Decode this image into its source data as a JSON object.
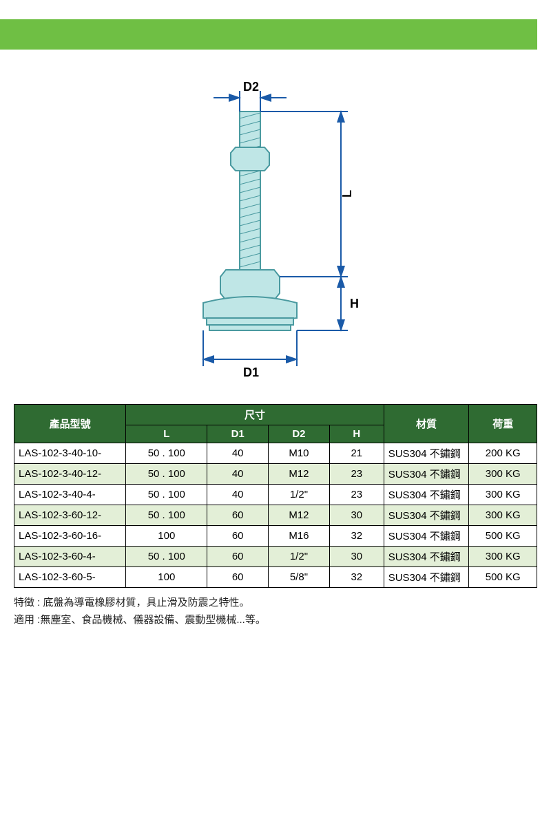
{
  "colors": {
    "top_bar": "#6fbf44",
    "header_bg": "#2f6b32",
    "row_alt_bg": "#e3efd7",
    "border": "#000000",
    "dim_line": "#1a5aa8",
    "part_fill": "#bfe6e6",
    "part_stroke": "#4a9aa0",
    "text": "#000000"
  },
  "diagram": {
    "labels": {
      "D1": "D1",
      "D2": "D2",
      "L": "L",
      "H": "H"
    },
    "label_fontsize": 16
  },
  "table": {
    "headers": {
      "product_no": "產品型號",
      "dimensions": "尺寸",
      "L": "L",
      "D1": "D1",
      "D2": "D2",
      "H": "H",
      "material": "材質",
      "load": "荷重"
    },
    "col_widths": {
      "product_no": 165,
      "L": 120,
      "D1": 90,
      "D2": 90,
      "H": 80,
      "material": 125,
      "load": 100
    },
    "rows": [
      {
        "pn": "LAS-102-3-40-10-",
        "L": "50 . 100",
        "D1": "40",
        "D2": "M10",
        "H": "21",
        "mat": "SUS304 不鏽鋼",
        "load": "200  KG"
      },
      {
        "pn": "LAS-102-3-40-12-",
        "L": "50 . 100",
        "D1": "40",
        "D2": "M12",
        "H": "23",
        "mat": "SUS304 不鏽鋼",
        "load": "300  KG"
      },
      {
        "pn": "LAS-102-3-40-4-",
        "L": "50 . 100",
        "D1": "40",
        "D2": "1/2\"",
        "H": "23",
        "mat": "SUS304 不鏽鋼",
        "load": "300  KG"
      },
      {
        "pn": "LAS-102-3-60-12-",
        "L": "50 . 100",
        "D1": "60",
        "D2": "M12",
        "H": "30",
        "mat": "SUS304 不鏽鋼",
        "load": "300  KG"
      },
      {
        "pn": "LAS-102-3-60-16-",
        "L": "100",
        "D1": "60",
        "D2": "M16",
        "H": "32",
        "mat": "SUS304 不鏽鋼",
        "load": "500  KG"
      },
      {
        "pn": "LAS-102-3-60-4-",
        "L": "50 . 100",
        "D1": "60",
        "D2": "1/2\"",
        "H": "30",
        "mat": "SUS304 不鏽鋼",
        "load": "300  KG"
      },
      {
        "pn": "LAS-102-3-60-5-",
        "L": "100",
        "D1": "60",
        "D2": "5/8\"",
        "H": "32",
        "mat": "SUS304 不鏽鋼",
        "load": "500  KG"
      }
    ]
  },
  "notes": {
    "line1": "特徵 : 底盤為導電橡膠材質，具止滑及防震之特性。",
    "line2": "適用 :無塵室、食品機械、儀器設備、震動型機械...等。"
  }
}
